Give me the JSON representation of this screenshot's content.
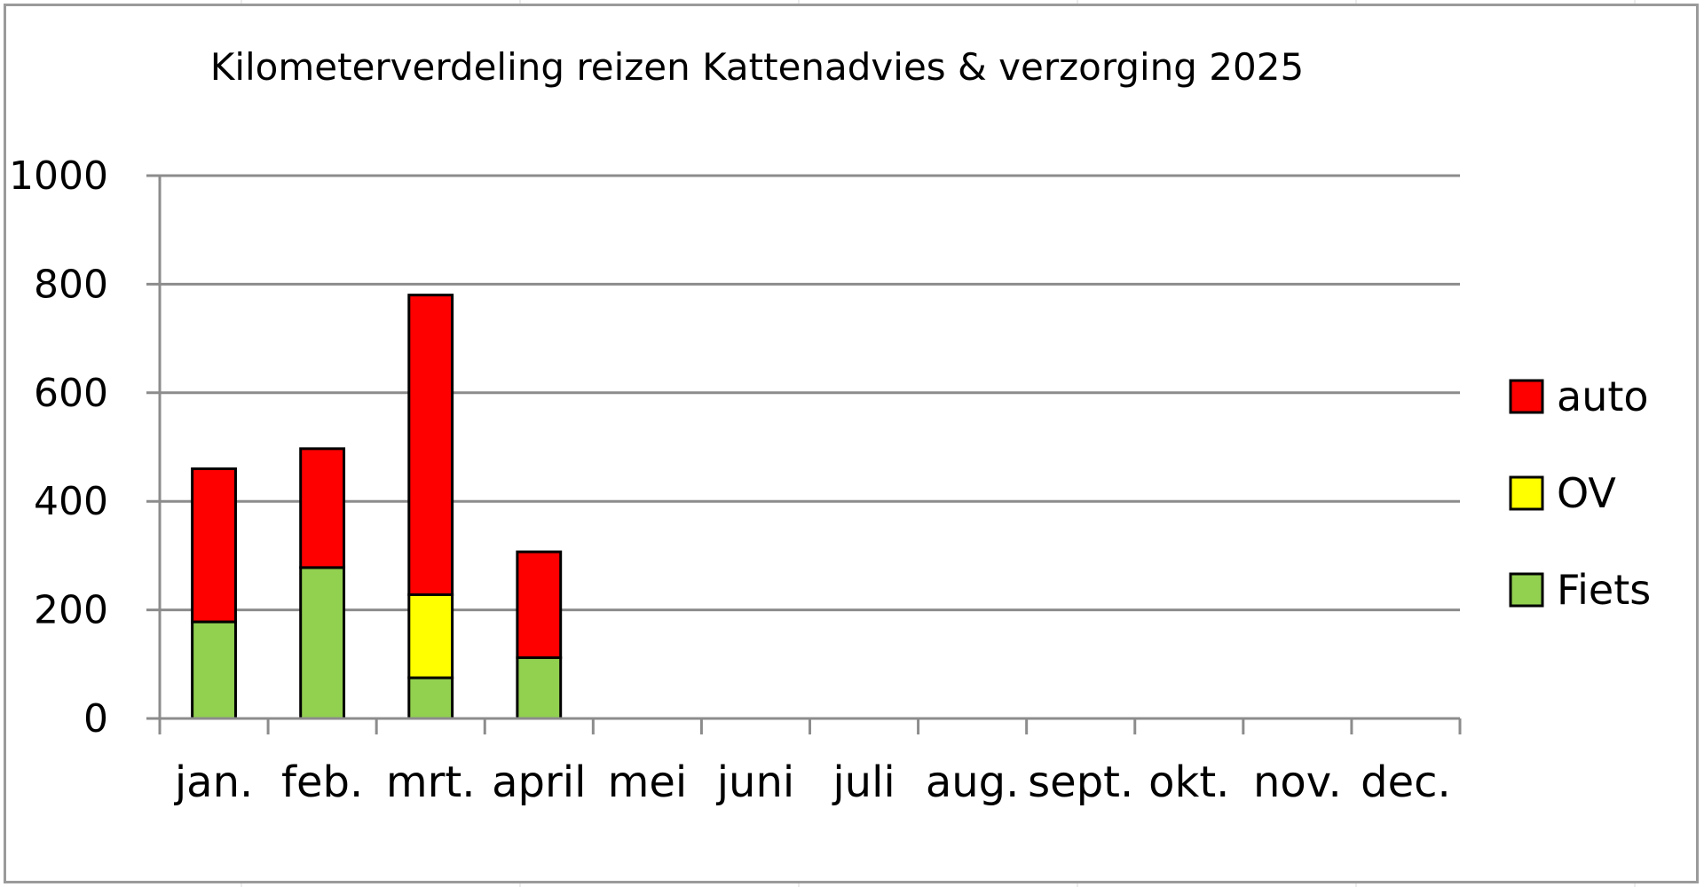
{
  "chart_data": {
    "type": "bar",
    "stacked": true,
    "title": "Kilometerverdeling reizen Kattenadvies & verzorging 2025",
    "xlabel": "",
    "ylabel": "",
    "ylim": [
      0,
      1000
    ],
    "yticks": [
      "0",
      "200",
      "400",
      "600",
      "800",
      "1000"
    ],
    "grid": true,
    "legend_position": "right",
    "categories": [
      "jan.",
      "feb.",
      "mrt.",
      "april",
      "mei",
      "juni",
      "juli",
      "aug.",
      "sept.",
      "okt.",
      "nov.",
      "dec."
    ],
    "series": [
      {
        "name": "Fiets",
        "color": "#92d050",
        "values": [
          178,
          278,
          75,
          112,
          0,
          0,
          0,
          0,
          0,
          0,
          0,
          0
        ]
      },
      {
        "name": "OV",
        "color": "#ffff00",
        "values": [
          0,
          0,
          153,
          0,
          0,
          0,
          0,
          0,
          0,
          0,
          0,
          0
        ]
      },
      {
        "name": "auto",
        "color": "#ff0000",
        "values": [
          282,
          219,
          552,
          195,
          0,
          0,
          0,
          0,
          0,
          0,
          0,
          0
        ]
      }
    ],
    "legend_order": [
      "auto",
      "OV",
      "Fiets"
    ]
  }
}
